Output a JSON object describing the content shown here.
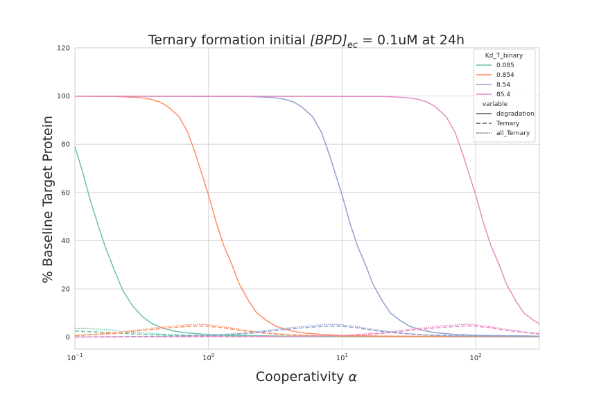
{
  "chart_data": {
    "type": "line",
    "title_main": "Ternary formation initial ",
    "title_math": "[BPD]",
    "title_sub": "ec",
    "title_tail": " = 0.1uM at 24h",
    "xlabel": "Cooperativity",
    "xlabel_symbol": "α",
    "ylabel": "% Baseline Target Protein",
    "xscale": "log",
    "xlim": [
      0.1,
      300
    ],
    "ylim": [
      -5,
      120
    ],
    "yticks": [
      0,
      20,
      40,
      60,
      80,
      100,
      120
    ],
    "xticks": [
      {
        "value": 0.1,
        "base": "10",
        "exp": "−1"
      },
      {
        "value": 1,
        "base": "10",
        "exp": "0"
      },
      {
        "value": 10,
        "base": "10",
        "exp": "1"
      },
      {
        "value": 100,
        "base": "10",
        "exp": "2"
      }
    ],
    "grid": true,
    "legend": {
      "placement": "top-right",
      "hue_title": "Kd_T_binary",
      "style_title": "variable",
      "hue_entries": [
        {
          "label": "0.085",
          "color": "#66c2a5"
        },
        {
          "label": "0.854",
          "color": "#fc8d62"
        },
        {
          "label": "8.54",
          "color": "#8da0cb"
        },
        {
          "label": "85.4",
          "color": "#e78ac3"
        }
      ],
      "style_entries": [
        {
          "label": "degradation",
          "dash": "solid"
        },
        {
          "label": "Ternary",
          "dash": "dashed"
        },
        {
          "label": "all_Ternary",
          "dash": "dotted"
        }
      ]
    },
    "series": [
      {
        "kd": "0.085",
        "variable": "degradation",
        "color": "#66c2a5",
        "dash": "solid",
        "points": [
          [
            0.1,
            79
          ],
          [
            0.115,
            68
          ],
          [
            0.13,
            57
          ],
          [
            0.15,
            46
          ],
          [
            0.17,
            37
          ],
          [
            0.2,
            27
          ],
          [
            0.23,
            19
          ],
          [
            0.27,
            13
          ],
          [
            0.32,
            8.5
          ],
          [
            0.38,
            5.5
          ],
          [
            0.45,
            3.8
          ],
          [
            0.55,
            2.5
          ],
          [
            0.7,
            1.7
          ],
          [
            0.9,
            1.2
          ],
          [
            1.2,
            0.9
          ],
          [
            2,
            0.6
          ],
          [
            4,
            0.4
          ],
          [
            10,
            0.3
          ],
          [
            300,
            0.2
          ]
        ]
      },
      {
        "kd": "0.085",
        "variable": "Ternary",
        "color": "#66c2a5",
        "dash": "dashed",
        "points": [
          [
            0.1,
            2.5
          ],
          [
            0.15,
            2.1
          ],
          [
            0.2,
            1.7
          ],
          [
            0.3,
            1.2
          ],
          [
            0.5,
            0.8
          ],
          [
            1,
            0.5
          ],
          [
            3,
            0.3
          ],
          [
            10,
            0.2
          ],
          [
            300,
            0.1
          ]
        ]
      },
      {
        "kd": "0.085",
        "variable": "all_Ternary",
        "color": "#66c2a5",
        "dash": "dotted",
        "points": [
          [
            0.1,
            3.6
          ],
          [
            0.13,
            3.5
          ],
          [
            0.17,
            3.1
          ],
          [
            0.22,
            2.5
          ],
          [
            0.3,
            1.8
          ],
          [
            0.45,
            1.2
          ],
          [
            0.7,
            0.8
          ],
          [
            1.2,
            0.5
          ],
          [
            3,
            0.3
          ],
          [
            10,
            0.2
          ],
          [
            300,
            0.1
          ]
        ]
      },
      {
        "kd": "0.854",
        "variable": "degradation",
        "color": "#fc8d62",
        "dash": "solid",
        "points": [
          [
            0.1,
            99.9
          ],
          [
            0.2,
            99.8
          ],
          [
            0.3,
            99.4
          ],
          [
            0.36,
            98.8
          ],
          [
            0.43,
            97.6
          ],
          [
            0.5,
            95.5
          ],
          [
            0.6,
            91.5
          ],
          [
            0.7,
            85
          ],
          [
            0.8,
            76
          ],
          [
            0.9,
            67
          ],
          [
            1.0,
            59
          ],
          [
            1.15,
            47
          ],
          [
            1.3,
            38
          ],
          [
            1.5,
            30
          ],
          [
            1.7,
            22
          ],
          [
            2.0,
            15
          ],
          [
            2.3,
            10
          ],
          [
            2.7,
            7
          ],
          [
            3.2,
            4.5
          ],
          [
            4,
            2.8
          ],
          [
            5,
            1.8
          ],
          [
            7,
            1.1
          ],
          [
            10,
            0.7
          ],
          [
            20,
            0.4
          ],
          [
            300,
            0.2
          ]
        ]
      },
      {
        "kd": "0.854",
        "variable": "Ternary",
        "color": "#fc8d62",
        "dash": "dashed",
        "points": [
          [
            0.1,
            0.6
          ],
          [
            0.2,
            1.5
          ],
          [
            0.3,
            2.6
          ],
          [
            0.5,
            3.8
          ],
          [
            0.7,
            4.4
          ],
          [
            0.85,
            4.6
          ],
          [
            1.0,
            4.5
          ],
          [
            1.3,
            3.8
          ],
          [
            1.7,
            2.8
          ],
          [
            2.5,
            1.7
          ],
          [
            4,
            0.9
          ],
          [
            7,
            0.5
          ],
          [
            20,
            0.25
          ],
          [
            300,
            0.1
          ]
        ]
      },
      {
        "kd": "0.854",
        "variable": "all_Ternary",
        "color": "#fc8d62",
        "dash": "dotted",
        "points": [
          [
            0.1,
            0.7
          ],
          [
            0.2,
            1.8
          ],
          [
            0.3,
            3.0
          ],
          [
            0.5,
            4.4
          ],
          [
            0.7,
            5.1
          ],
          [
            0.85,
            5.3
          ],
          [
            1.0,
            5.1
          ],
          [
            1.3,
            4.3
          ],
          [
            1.7,
            3.2
          ],
          [
            2.5,
            1.9
          ],
          [
            4,
            1.0
          ],
          [
            7,
            0.5
          ],
          [
            20,
            0.25
          ],
          [
            300,
            0.1
          ]
        ]
      },
      {
        "kd": "8.54",
        "variable": "degradation",
        "color": "#8da0cb",
        "dash": "solid",
        "points": [
          [
            0.1,
            99.95
          ],
          [
            2,
            99.8
          ],
          [
            3,
            99.4
          ],
          [
            3.6,
            98.8
          ],
          [
            4.3,
            97.6
          ],
          [
            5,
            95.5
          ],
          [
            6,
            91.5
          ],
          [
            7,
            85
          ],
          [
            8,
            76
          ],
          [
            9,
            67
          ],
          [
            10,
            59
          ],
          [
            11.5,
            47
          ],
          [
            13,
            38
          ],
          [
            15,
            30
          ],
          [
            17,
            22
          ],
          [
            20,
            15
          ],
          [
            23,
            10
          ],
          [
            27,
            7
          ],
          [
            32,
            4.5
          ],
          [
            40,
            2.8
          ],
          [
            50,
            1.8
          ],
          [
            70,
            1.1
          ],
          [
            100,
            0.7
          ],
          [
            300,
            0.4
          ]
        ]
      },
      {
        "kd": "8.54",
        "variable": "Ternary",
        "color": "#8da0cb",
        "dash": "dashed",
        "points": [
          [
            0.1,
            0.05
          ],
          [
            0.5,
            0.3
          ],
          [
            1,
            0.6
          ],
          [
            2,
            1.5
          ],
          [
            3,
            2.6
          ],
          [
            5,
            3.8
          ],
          [
            7,
            4.4
          ],
          [
            8.5,
            4.6
          ],
          [
            10,
            4.5
          ],
          [
            13,
            3.8
          ],
          [
            17,
            2.8
          ],
          [
            25,
            1.7
          ],
          [
            40,
            0.9
          ],
          [
            70,
            0.5
          ],
          [
            300,
            0.2
          ]
        ]
      },
      {
        "kd": "8.54",
        "variable": "all_Ternary",
        "color": "#8da0cb",
        "dash": "dotted",
        "points": [
          [
            0.1,
            0.06
          ],
          [
            0.5,
            0.35
          ],
          [
            1,
            0.7
          ],
          [
            2,
            1.8
          ],
          [
            3,
            3.0
          ],
          [
            5,
            4.4
          ],
          [
            7,
            5.1
          ],
          [
            8.5,
            5.3
          ],
          [
            10,
            5.1
          ],
          [
            13,
            4.3
          ],
          [
            17,
            3.2
          ],
          [
            25,
            1.9
          ],
          [
            40,
            1.0
          ],
          [
            70,
            0.5
          ],
          [
            300,
            0.2
          ]
        ]
      },
      {
        "kd": "85.4",
        "variable": "degradation",
        "color": "#e78ac3",
        "dash": "solid",
        "points": [
          [
            0.1,
            99.95
          ],
          [
            20,
            99.8
          ],
          [
            30,
            99.4
          ],
          [
            36,
            98.8
          ],
          [
            43,
            97.6
          ],
          [
            50,
            95.5
          ],
          [
            60,
            91.5
          ],
          [
            70,
            85
          ],
          [
            80,
            76
          ],
          [
            90,
            67
          ],
          [
            100,
            59
          ],
          [
            115,
            47
          ],
          [
            130,
            38
          ],
          [
            150,
            30
          ],
          [
            170,
            22
          ],
          [
            200,
            15
          ],
          [
            230,
            10
          ],
          [
            270,
            7
          ],
          [
            300,
            5.5
          ]
        ]
      },
      {
        "kd": "85.4",
        "variable": "Ternary",
        "color": "#e78ac3",
        "dash": "dashed",
        "points": [
          [
            0.1,
            0.01
          ],
          [
            5,
            0.3
          ],
          [
            10,
            0.6
          ],
          [
            20,
            1.5
          ],
          [
            30,
            2.6
          ],
          [
            50,
            3.8
          ],
          [
            70,
            4.4
          ],
          [
            85,
            4.6
          ],
          [
            100,
            4.5
          ],
          [
            130,
            3.8
          ],
          [
            170,
            2.8
          ],
          [
            250,
            1.7
          ],
          [
            300,
            1.3
          ]
        ]
      },
      {
        "kd": "85.4",
        "variable": "all_Ternary",
        "color": "#e78ac3",
        "dash": "dotted",
        "points": [
          [
            0.1,
            0.01
          ],
          [
            5,
            0.35
          ],
          [
            10,
            0.7
          ],
          [
            20,
            1.8
          ],
          [
            30,
            3.0
          ],
          [
            50,
            4.4
          ],
          [
            70,
            5.1
          ],
          [
            85,
            5.3
          ],
          [
            100,
            5.1
          ],
          [
            130,
            4.3
          ],
          [
            170,
            3.2
          ],
          [
            250,
            1.9
          ],
          [
            300,
            1.5
          ]
        ]
      }
    ]
  }
}
